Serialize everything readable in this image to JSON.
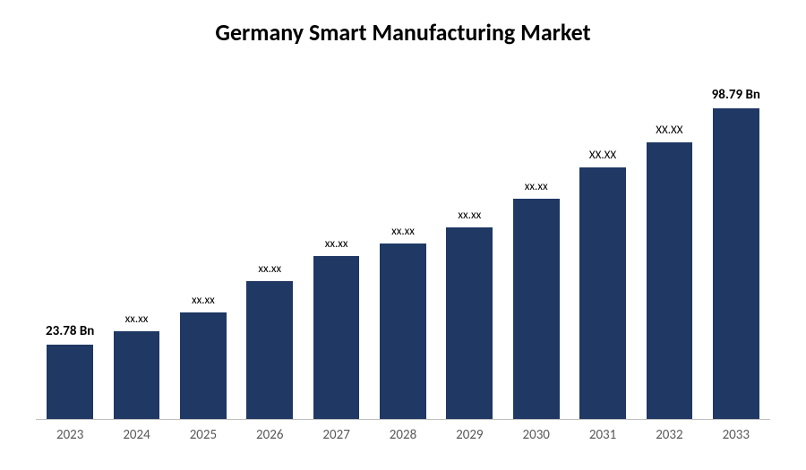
{
  "chart": {
    "type": "bar",
    "title": "Germany Smart Manufacturing Market",
    "title_fontsize": 26,
    "title_fontweight": 700,
    "title_color": "#000000",
    "background_color": "#ffffff",
    "axis_line_color": "#bfbfbf",
    "bar_color": "#1f3864",
    "bar_width_ratio": 0.78,
    "ylim": [
      0,
      110
    ],
    "categories": [
      "2023",
      "2024",
      "2025",
      "2026",
      "2027",
      "2028",
      "2029",
      "2030",
      "2031",
      "2032",
      "2033"
    ],
    "values": [
      23.78,
      28,
      34,
      44,
      52,
      56,
      61,
      70,
      80,
      88,
      98.79
    ],
    "value_labels": [
      "23.78 Bn",
      "xx.xx",
      "xx.xx",
      "xx.xx",
      "xx.xx",
      "xx.xx",
      "xx.xx",
      "xx.xx",
      "XX.XX",
      "XX.XX",
      "98.79 Bn"
    ],
    "label_is_data": [
      true,
      false,
      false,
      false,
      false,
      false,
      false,
      false,
      false,
      false,
      true
    ],
    "xlabel_fontsize": 15,
    "xlabel_color": "#595959",
    "datalabel_bold_fontsize": 15,
    "datalabel_masked_fontsize": 13
  }
}
